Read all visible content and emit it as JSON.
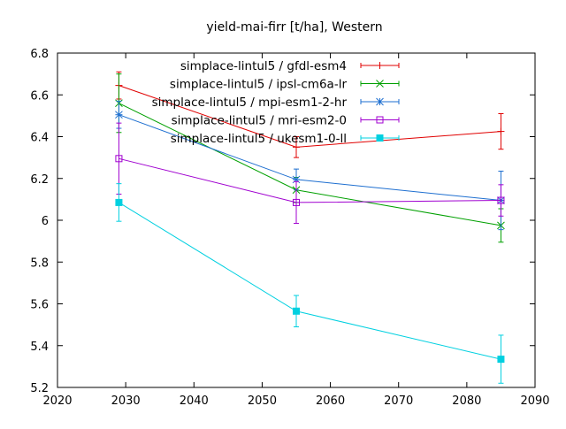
{
  "chart_data": {
    "type": "line",
    "title": "yield-mai-firr [t/ha], Western",
    "xlabel": "",
    "ylabel": "",
    "xlim": [
      2020,
      2090
    ],
    "ylim": [
      5.2,
      6.8
    ],
    "x_ticks": [
      2020,
      2030,
      2040,
      2050,
      2060,
      2070,
      2080,
      2090
    ],
    "y_ticks": [
      5.2,
      5.4,
      5.6,
      5.8,
      6,
      6.2,
      6.4,
      6.6,
      6.8
    ],
    "x_tick_labels": [
      "2020",
      "2030",
      "2040",
      "2050",
      "2060",
      "2070",
      "2080",
      "2090"
    ],
    "y_tick_labels": [
      "5.2",
      "5.4",
      "5.6",
      "5.8",
      "6",
      "6.2",
      "6.4",
      "6.6",
      "6.8"
    ],
    "x": [
      2029,
      2055,
      2085
    ],
    "legend_position": "top-right",
    "grid": false,
    "series": [
      {
        "name": "simplace-lintul5 / gfdl-esm4",
        "color": "#e00000",
        "marker": "plus",
        "values": [
          6.645,
          6.35,
          6.425
        ],
        "errors": [
          0.065,
          0.05,
          0.085
        ]
      },
      {
        "name": "simplace-lintul5 / ipsl-cm6a-lr",
        "color": "#00a000",
        "marker": "cross",
        "values": [
          6.56,
          6.145,
          5.975
        ],
        "errors": [
          0.14,
          0.06,
          0.08
        ]
      },
      {
        "name": "simplace-lintul5 / mpi-esm1-2-hr",
        "color": "#1e6fd0",
        "marker": "star",
        "values": [
          6.505,
          6.195,
          6.095
        ],
        "errors": [
          0.065,
          0.05,
          0.14
        ]
      },
      {
        "name": "simplace-lintul5 / mri-esm2-0",
        "color": "#a000d0",
        "marker": "open-square",
        "values": [
          6.295,
          6.085,
          6.095
        ],
        "errors": [
          0.17,
          0.1,
          0.075
        ]
      },
      {
        "name": "simplace-lintul5 / ukesm1-0-ll",
        "color": "#00d0e0",
        "marker": "filled-square",
        "values": [
          6.085,
          5.565,
          5.335
        ],
        "errors": [
          0.09,
          0.075,
          0.115
        ]
      }
    ]
  }
}
